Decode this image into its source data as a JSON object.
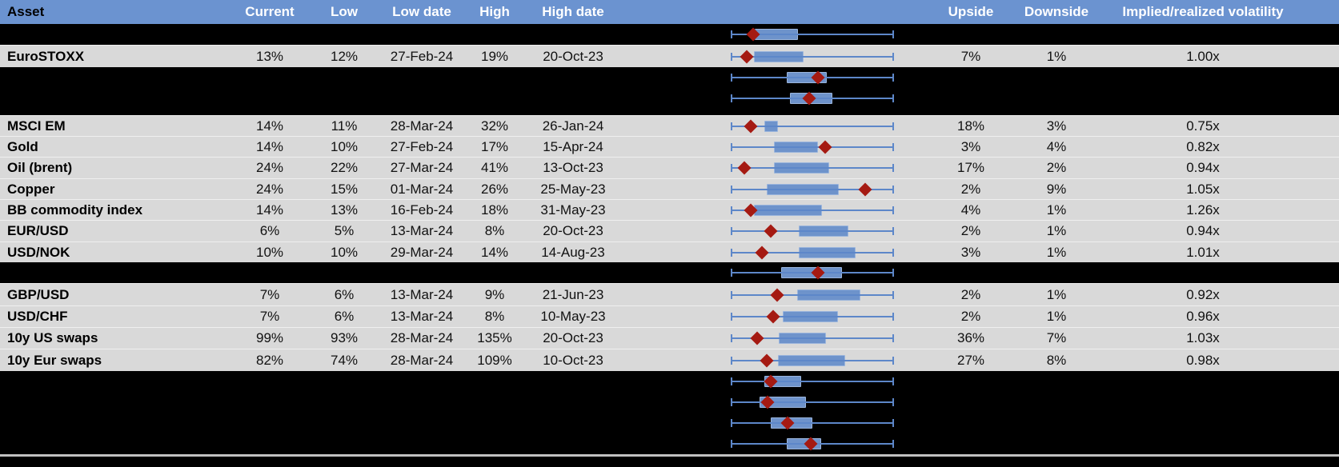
{
  "title": "Implied volatility overview table with 52-week range box plots",
  "colors": {
    "header_bg": "#6b93d0",
    "header_text": "#ffffff",
    "data_row_bg": "#d9d9d9",
    "hidden_row_bg": "#000000",
    "box_fill": "#6e93cb",
    "box_border": "#9bb5dc",
    "whisker_blue": "#5d87c9",
    "marker_red": "#a51a12",
    "divider_gray": "#c0c0c0"
  },
  "chart_data": {
    "type": "table",
    "columns": [
      "Asset",
      "Current",
      "Low",
      "Low date",
      "High",
      "High date",
      "Upside",
      "Downside",
      "Implied/realized volatility"
    ],
    "boxplot_column": {
      "description": "Box-and-whisker range chart per row: full-span whiskers with end caps, blue interquartile box, red diamond = current level",
      "units": "percent of whisker span (0 = left cap / low, 100 = right cap / high)"
    },
    "rows": [
      {
        "type": "hidden",
        "plot": {
          "box_start": 14.7,
          "box_end": 41.2,
          "marker": 13.7
        }
      },
      {
        "type": "data",
        "asset": "EuroSTOXX",
        "current": "13%",
        "low": "12%",
        "low_date": "27-Feb-24",
        "high": "19%",
        "high_date": "20-Oct-23",
        "upside": "7%",
        "downside": "1%",
        "vol": "1.00x",
        "plot": {
          "box_start": 14.2,
          "box_end": 44.6,
          "marker": 9.8
        }
      },
      {
        "type": "hidden",
        "plot": {
          "box_start": 34.3,
          "box_end": 58.8,
          "marker": 53.4
        }
      },
      {
        "type": "hidden",
        "plot": {
          "box_start": 36.3,
          "box_end": 62.3,
          "marker": 48.0
        }
      },
      {
        "type": "spacer"
      },
      {
        "type": "data",
        "asset": "MSCI EM",
        "current": "14%",
        "low": "11%",
        "low_date": "28-Mar-24",
        "high": "32%",
        "high_date": "26-Jan-24",
        "upside": "18%",
        "downside": "3%",
        "vol": "0.75x",
        "plot": {
          "box_start": 20.6,
          "box_end": 28.9,
          "marker": 12.3
        }
      },
      {
        "type": "data",
        "asset": "Gold",
        "current": "14%",
        "low": "10%",
        "low_date": "27-Feb-24",
        "high": "17%",
        "high_date": "15-Apr-24",
        "upside": "3%",
        "downside": "4%",
        "vol": "0.82x",
        "plot": {
          "box_start": 26.5,
          "box_end": 53.4,
          "marker": 57.8
        }
      },
      {
        "type": "data",
        "asset": "Oil (brent)",
        "current": "24%",
        "low": "22%",
        "low_date": "27-Mar-24",
        "high": "41%",
        "high_date": "13-Oct-23",
        "upside": "17%",
        "downside": "2%",
        "vol": "0.94x",
        "plot": {
          "box_start": 26.5,
          "box_end": 60.3,
          "marker": 8.3
        }
      },
      {
        "type": "data",
        "asset": "Copper",
        "current": "24%",
        "low": "15%",
        "low_date": "01-Mar-24",
        "high": "26%",
        "high_date": "25-May-23",
        "upside": "2%",
        "downside": "9%",
        "vol": "1.05x",
        "plot": {
          "box_start": 22.1,
          "box_end": 66.2,
          "marker": 82.4
        }
      },
      {
        "type": "data",
        "asset": "BB commodity index",
        "current": "14%",
        "low": "13%",
        "low_date": "16-Feb-24",
        "high": "18%",
        "high_date": "31-May-23",
        "upside": "4%",
        "downside": "1%",
        "vol": "1.26x",
        "plot": {
          "box_start": 14.2,
          "box_end": 55.9,
          "marker": 12.3
        }
      },
      {
        "type": "data",
        "asset": "EUR/USD",
        "current": "6%",
        "low": "5%",
        "low_date": "13-Mar-24",
        "high": "8%",
        "high_date": "20-Oct-23",
        "upside": "2%",
        "downside": "1%",
        "vol": "0.94x",
        "plot": {
          "box_start": 41.7,
          "box_end": 72.1,
          "marker": 24.5
        }
      },
      {
        "type": "data",
        "asset": "USD/NOK",
        "current": "10%",
        "low": "10%",
        "low_date": "29-Mar-24",
        "high": "14%",
        "high_date": "14-Aug-23",
        "upside": "3%",
        "downside": "1%",
        "vol": "1.01x",
        "plot": {
          "box_start": 41.7,
          "box_end": 76.5,
          "marker": 19.1
        }
      },
      {
        "type": "hidden",
        "plot": {
          "box_start": 30.9,
          "box_end": 68.1,
          "marker": 53.4
        }
      },
      {
        "type": "data",
        "asset": "GBP/USD",
        "current": "7%",
        "low": "6%",
        "low_date": "13-Mar-24",
        "high": "9%",
        "high_date": "21-Jun-23",
        "upside": "2%",
        "downside": "1%",
        "vol": "0.92x",
        "plot": {
          "box_start": 40.7,
          "box_end": 79.4,
          "marker": 28.4
        }
      },
      {
        "type": "data",
        "asset": "USD/CHF",
        "current": "7%",
        "low": "6%",
        "low_date": "13-Mar-24",
        "high": "8%",
        "high_date": "10-May-23",
        "upside": "2%",
        "downside": "1%",
        "vol": "0.96x",
        "plot": {
          "box_start": 31.9,
          "box_end": 65.7,
          "marker": 26.0
        }
      },
      {
        "type": "data",
        "asset": "10y US swaps",
        "current": "99%",
        "low": "93%",
        "low_date": "28-Mar-24",
        "high": "135%",
        "high_date": "20-Oct-23",
        "upside": "36%",
        "downside": "7%",
        "vol": "1.03x",
        "plot": {
          "box_start": 29.4,
          "box_end": 58.3,
          "marker": 16.2
        }
      },
      {
        "type": "data",
        "asset": "10y Eur swaps",
        "current": "82%",
        "low": "74%",
        "low_date": "28-Mar-24",
        "high": "109%",
        "high_date": "10-Oct-23",
        "upside": "27%",
        "downside": "8%",
        "vol": "0.98x",
        "plot": {
          "box_start": 28.9,
          "box_end": 70.1,
          "marker": 22.1
        }
      },
      {
        "type": "hidden",
        "plot": {
          "box_start": 20.6,
          "box_end": 43.1,
          "marker": 24.5
        }
      },
      {
        "type": "hidden",
        "plot": {
          "box_start": 17.6,
          "box_end": 46.1,
          "marker": 22.5
        }
      },
      {
        "type": "hidden",
        "plot": {
          "box_start": 24.5,
          "box_end": 50.0,
          "marker": 34.8
        }
      },
      {
        "type": "hidden",
        "plot": {
          "box_start": 34.3,
          "box_end": 55.4,
          "marker": 49.0
        }
      }
    ]
  }
}
